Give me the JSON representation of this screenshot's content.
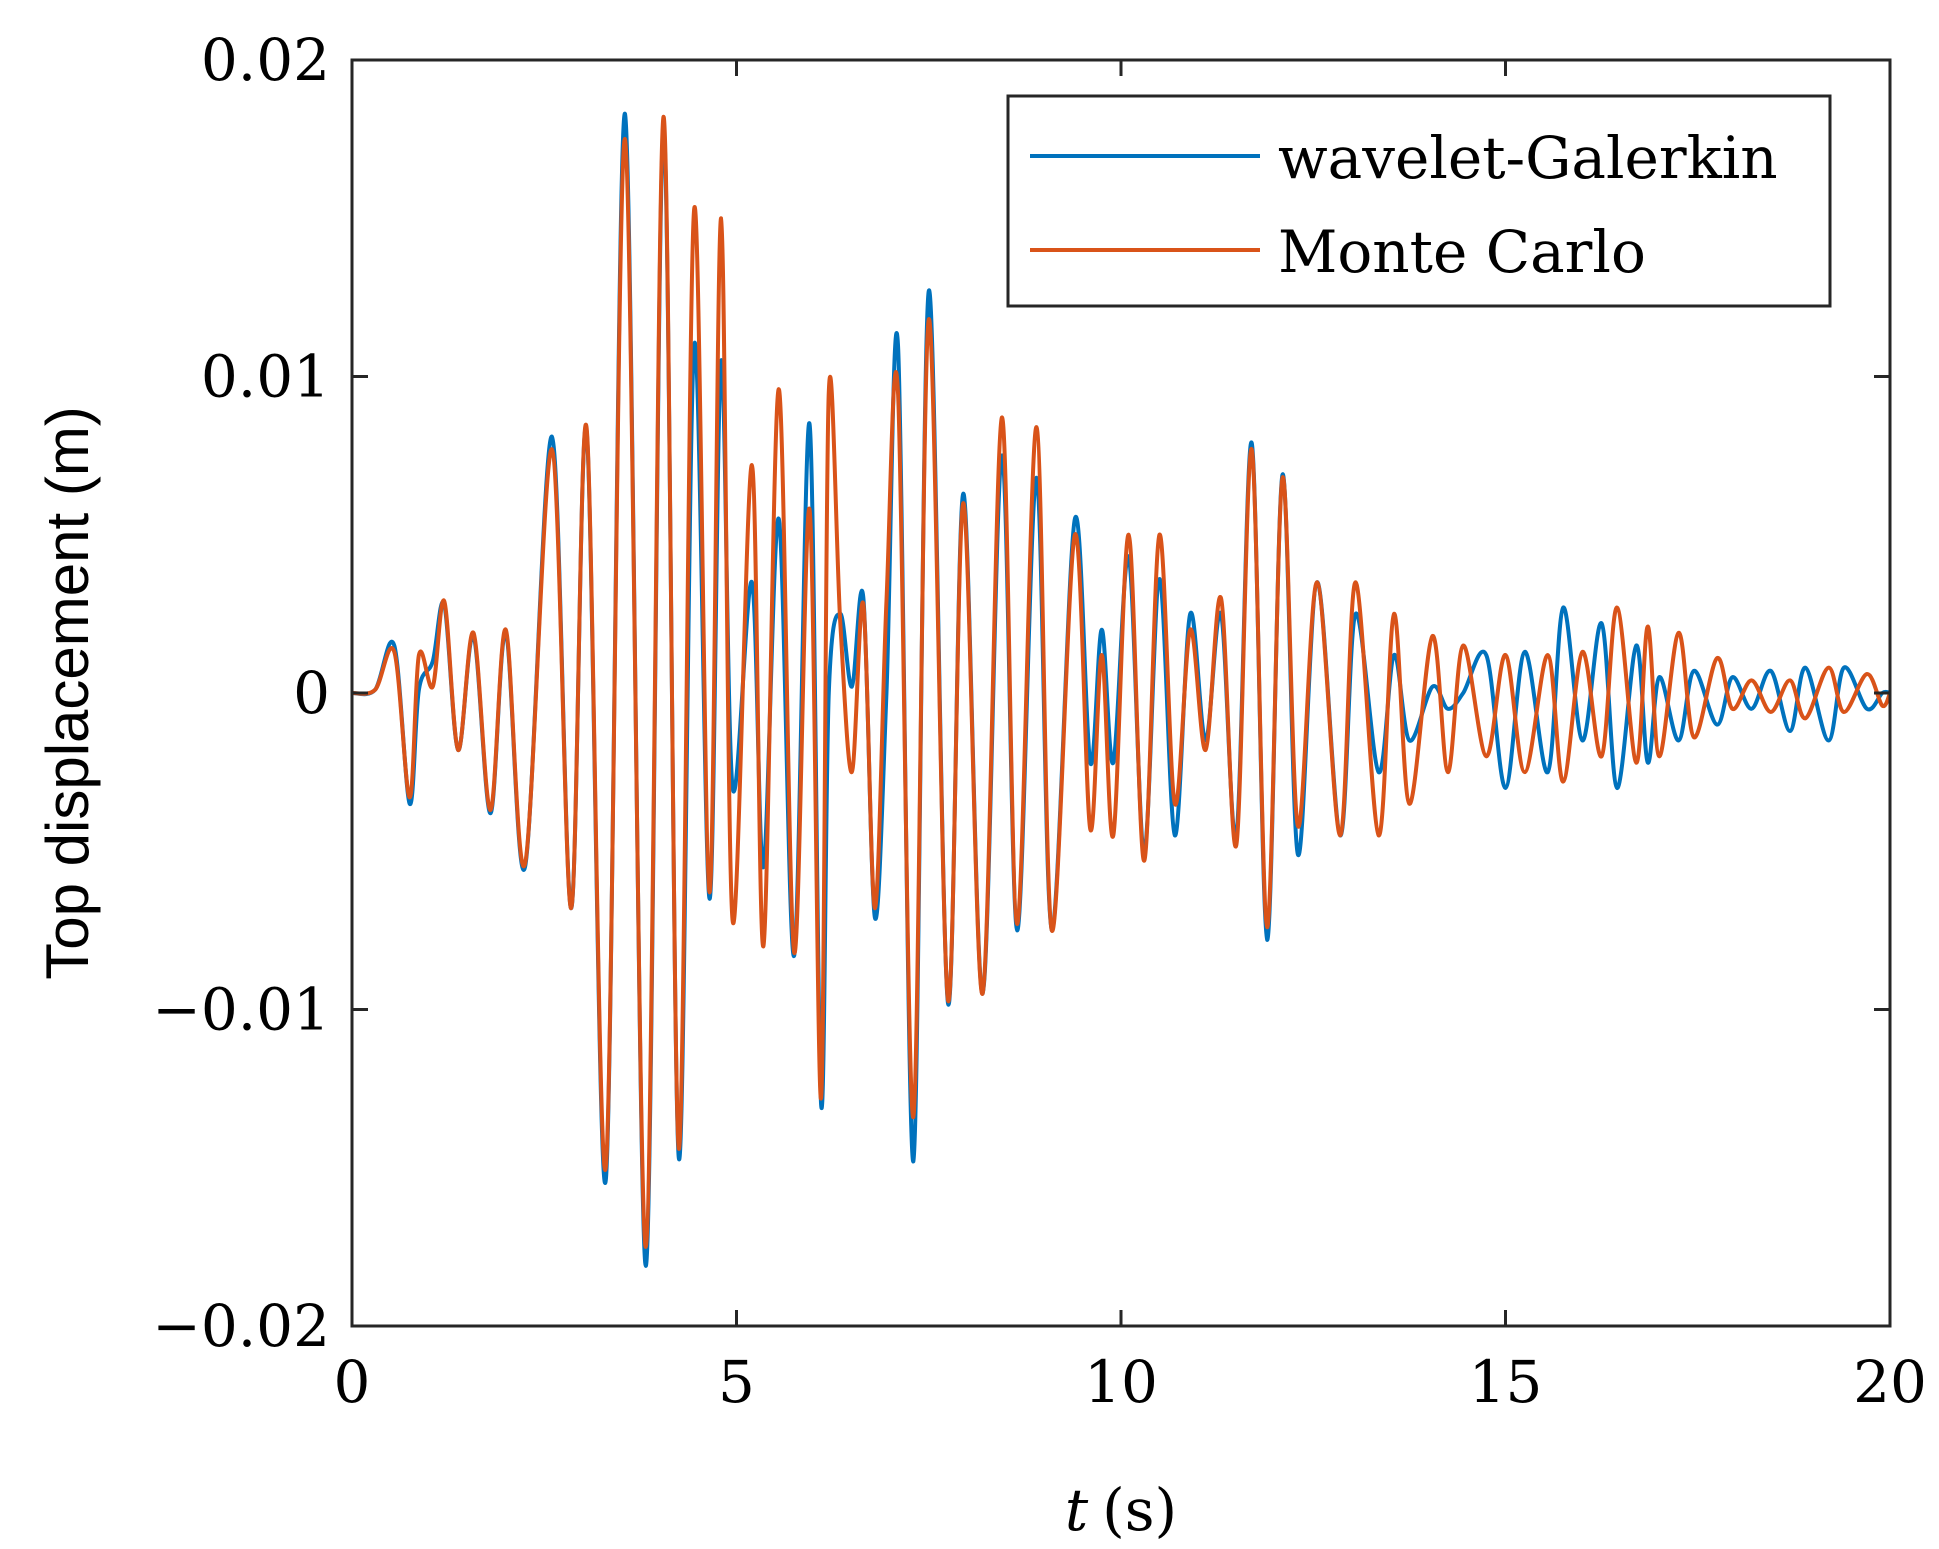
{
  "chart_data": {
    "type": "line",
    "title": "",
    "xlabel_var": "t",
    "xlabel_unit": "(s)",
    "ylabel": "Top displacement (m)",
    "xlim": [
      0,
      20
    ],
    "ylim": [
      -0.02,
      0.02
    ],
    "xticks": [
      0,
      5,
      10,
      15,
      20
    ],
    "xtick_labels": [
      "0",
      "5",
      "10",
      "15",
      "20"
    ],
    "yticks": [
      -0.02,
      -0.01,
      0,
      0.01,
      0.02
    ],
    "ytick_labels": [
      "−0.02",
      "−0.01",
      "0",
      "0.01",
      "0.02"
    ],
    "grid": false,
    "legend_position": "top-right",
    "series": [
      {
        "name": "wavelet-Galerkin",
        "color": "#0072BD",
        "x": [
          0,
          0.3,
          0.55,
          0.75,
          0.87,
          1.05,
          1.2,
          1.38,
          1.58,
          1.8,
          2.0,
          2.25,
          2.6,
          2.85,
          3.05,
          3.3,
          3.55,
          3.82,
          4.05,
          4.25,
          4.45,
          4.65,
          4.8,
          4.95,
          5.2,
          5.35,
          5.55,
          5.75,
          5.95,
          6.1,
          6.2,
          6.35,
          6.5,
          6.65,
          6.8,
          6.95,
          7.1,
          7.3,
          7.5,
          7.75,
          7.95,
          8.2,
          8.45,
          8.65,
          8.9,
          9.1,
          9.4,
          9.6,
          9.75,
          9.9,
          10.1,
          10.3,
          10.5,
          10.7,
          10.9,
          11.1,
          11.3,
          11.5,
          11.7,
          11.9,
          12.1,
          12.3,
          12.55,
          12.85,
          13.05,
          13.35,
          13.55,
          13.75,
          14.05,
          14.25,
          14.45,
          14.75,
          15.0,
          15.25,
          15.55,
          15.75,
          16.0,
          16.25,
          16.45,
          16.7,
          16.85,
          17.0,
          17.25,
          17.45,
          17.75,
          17.95,
          18.2,
          18.45,
          18.7,
          18.9,
          19.2,
          19.4,
          19.7,
          19.9,
          20.0
        ],
        "y": [
          0,
          0.0001,
          0.0015,
          -0.0035,
          0.0001,
          0.001,
          0.0028,
          -0.0018,
          0.0018,
          -0.0038,
          0.0019,
          -0.0055,
          0.0081,
          -0.0068,
          0.0083,
          -0.0154,
          0.0183,
          -0.0181,
          0.0178,
          -0.0147,
          0.011,
          -0.0065,
          0.0105,
          -0.003,
          0.0035,
          -0.0055,
          0.0055,
          -0.0083,
          0.0085,
          -0.013,
          0.0,
          0.0025,
          0.0002,
          0.003,
          -0.0071,
          0.0,
          0.011,
          -0.0148,
          0.0127,
          -0.0098,
          0.0063,
          -0.0095,
          0.0075,
          -0.0075,
          0.0068,
          -0.0075,
          0.0055,
          -0.0022,
          0.002,
          -0.0022,
          0.0043,
          -0.005,
          0.0036,
          -0.0045,
          0.0025,
          -0.0015,
          0.0025,
          -0.0045,
          0.0079,
          -0.0078,
          0.0069,
          -0.0051,
          0.0035,
          -0.0045,
          0.0025,
          -0.0025,
          0.0012,
          -0.0015,
          0.0002,
          -0.0005,
          0.0,
          0.0012,
          -0.003,
          0.0013,
          -0.0025,
          0.0027,
          -0.0015,
          0.0022,
          -0.003,
          0.0015,
          -0.0022,
          0.0005,
          -0.0015,
          0.0007,
          -0.001,
          0.0005,
          -0.0005,
          0.0007,
          -0.0012,
          0.0008,
          -0.0015,
          0.0008,
          -0.0005,
          0.0,
          0.0
        ]
      },
      {
        "name": "Monte Carlo",
        "color": "#D95319",
        "x": [
          0,
          0.3,
          0.55,
          0.75,
          0.87,
          1.05,
          1.2,
          1.38,
          1.58,
          1.8,
          2.0,
          2.25,
          2.6,
          2.85,
          3.05,
          3.3,
          3.55,
          3.82,
          4.05,
          4.25,
          4.45,
          4.65,
          4.8,
          4.95,
          5.2,
          5.35,
          5.55,
          5.75,
          5.95,
          6.1,
          6.2,
          6.35,
          6.5,
          6.65,
          6.8,
          6.95,
          7.1,
          7.3,
          7.5,
          7.75,
          7.95,
          8.2,
          8.45,
          8.65,
          8.9,
          9.1,
          9.4,
          9.6,
          9.75,
          9.9,
          10.1,
          10.3,
          10.5,
          10.7,
          10.9,
          11.1,
          11.3,
          11.5,
          11.7,
          11.9,
          12.1,
          12.3,
          12.55,
          12.85,
          13.05,
          13.35,
          13.55,
          13.75,
          14.05,
          14.25,
          14.45,
          14.75,
          15.0,
          15.25,
          15.55,
          15.75,
          16.0,
          16.25,
          16.45,
          16.7,
          16.85,
          17.0,
          17.25,
          17.45,
          17.75,
          17.95,
          18.2,
          18.45,
          18.7,
          18.9,
          19.2,
          19.4,
          19.7,
          19.9,
          20.0
        ],
        "y": [
          0,
          0.0001,
          0.0013,
          -0.0033,
          0.0012,
          0.0002,
          0.0029,
          -0.0018,
          0.0019,
          -0.0037,
          0.002,
          -0.0054,
          0.0077,
          -0.0068,
          0.0084,
          -0.015,
          0.0175,
          -0.0175,
          0.0182,
          -0.0144,
          0.0153,
          -0.0063,
          0.015,
          -0.0072,
          0.0072,
          -0.008,
          0.0096,
          -0.0082,
          0.0058,
          -0.0128,
          0.0095,
          0.0022,
          -0.0025,
          0.0028,
          -0.0068,
          0.0029,
          0.0095,
          -0.0134,
          0.0118,
          -0.0097,
          0.006,
          -0.0095,
          0.0087,
          -0.0073,
          0.0084,
          -0.0075,
          0.005,
          -0.0043,
          0.0012,
          -0.0045,
          0.005,
          -0.0053,
          0.005,
          -0.0035,
          0.002,
          -0.0018,
          0.003,
          -0.0048,
          0.0077,
          -0.0074,
          0.0068,
          -0.0042,
          0.0035,
          -0.0045,
          0.0035,
          -0.0045,
          0.0025,
          -0.0035,
          0.0018,
          -0.0025,
          0.0015,
          -0.002,
          0.0012,
          -0.0025,
          0.0012,
          -0.0028,
          0.0013,
          -0.002,
          0.0027,
          -0.0022,
          0.0021,
          -0.002,
          0.0019,
          -0.0014,
          0.0011,
          -0.0005,
          0.0004,
          -0.0006,
          0.0004,
          -0.0008,
          0.0008,
          -0.0006,
          0.0006,
          -0.0004,
          0.0
        ]
      }
    ]
  }
}
